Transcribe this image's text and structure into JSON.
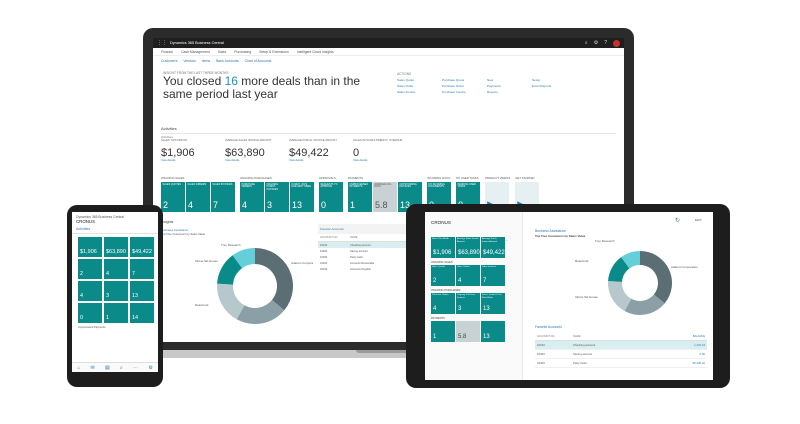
{
  "laptop": {
    "app_title": "Dynamics 365 Business Central",
    "menu": [
      "Finance",
      "Cash Management",
      "Sales",
      "Purchasing",
      "Setup & Extensions",
      "Intelligent Cloud Insights"
    ],
    "sub_menu": [
      "Customers",
      "Vendors",
      "Items",
      "Bank Accounts",
      "Chart of Accounts"
    ],
    "headline_label": "INSIGHT FROM THE LAST THREE MONTHS",
    "headline_pre": "You closed ",
    "headline_num": "16",
    "headline_post": " more deals than in the same period last year",
    "actions_title": "ACTIONS",
    "actions": [
      "Sales Quote",
      "Purchase Quote",
      "New",
      "Setup",
      "Sales Order",
      "Purchase Order",
      "Payments",
      "Excel Reports",
      "Sales Invoice",
      "Purchase Invoice",
      "Reports",
      ""
    ],
    "activities_title": "Activities",
    "activities_sub": "Activities",
    "kpis": [
      {
        "label": "SALES THIS MONTH",
        "value": "$1,906",
        "link": "View details"
      },
      {
        "label": "AVERAGE SALES INVOICE AMOUNT",
        "value": "$63,890",
        "link": "View details"
      },
      {
        "label": "AVERAGE PURCH. INVOICE AMOUNT",
        "value": "$49,422",
        "link": "View details"
      },
      {
        "label": "SALES INVOICES PREDICT. OVERDUE",
        "value": "0",
        "link": "View details"
      }
    ],
    "tile_groups": [
      {
        "label": "ONGOING SALES",
        "tiles": [
          {
            "label": "SALES QUOTES",
            "value": "2"
          },
          {
            "label": "SALES ORDERS",
            "value": "4"
          },
          {
            "label": "SALES INVOICES",
            "value": "7"
          }
        ]
      },
      {
        "label": "ONGOING PURCHASES",
        "tiles": [
          {
            "label": "PURCHASE ORDERS",
            "value": "4"
          },
          {
            "label": "ONGOING PURCH. INVOICES",
            "value": "3"
          },
          {
            "label": "PURCH. INVS. DUE NEXT WEEK",
            "value": "13"
          }
        ]
      },
      {
        "label": "APPROVALS",
        "tiles": [
          {
            "label": "REQUESTS TO APPROVE",
            "value": "0"
          }
        ]
      },
      {
        "label": "PAYMENTS",
        "tiles": [
          {
            "label": "UNPROCESSED PAYMENTS",
            "value": "1"
          },
          {
            "label": "AVERAGE COL. DAYS",
            "value": "5.8"
          },
          {
            "label": "OUTSTANDING INVOICES",
            "value": "13"
          }
        ]
      },
      {
        "label": "INCOMING DOCU.",
        "tiles": [
          {
            "label": "MY INCOMING DOCUMENTS",
            "value": "0"
          }
        ]
      },
      {
        "label": "MY USER TASKS",
        "tiles": [
          {
            "label": "PENDING USER TASKS",
            "value": "0"
          }
        ]
      },
      {
        "label": "PRODUCT VIDEOS",
        "tiles": [
          {
            "label": "",
            "value": "▶"
          }
        ]
      },
      {
        "label": "GET STARTED",
        "tiles": [
          {
            "label": "",
            "value": "▶"
          }
        ]
      }
    ],
    "insights_label": "Insights",
    "biz_title": "Business Assistance",
    "biz_sub": "Top Five Customers by Sales Value",
    "donut_labels": [
      "Trey Research",
      "Alpine Ski House",
      "Relecloud",
      "Adatum Corporation"
    ],
    "fav_title": "Favorite Accounts",
    "fav_header": [
      "ACCOUNT NO.",
      "NAME"
    ],
    "fav_rows": [
      {
        "no": "10100",
        "name": "Checking account"
      },
      {
        "no": "10200",
        "name": "Saving account"
      },
      {
        "no": "10300",
        "name": "Petty Cash"
      },
      {
        "no": "10400",
        "name": "Accounts Receivable"
      },
      {
        "no": "20100",
        "name": "Accounts Payable"
      }
    ]
  },
  "phone": {
    "title": "Dynamics 365 Business Central",
    "company": "CRONUS",
    "activities": "Activities",
    "tiles": [
      "$1,906",
      "$63,890",
      "$49,422",
      "2",
      "4",
      "7",
      "4",
      "3",
      "13",
      "0",
      "1",
      "14"
    ],
    "section": "Unprocessed Payments",
    "nav_icons": [
      "home-icon",
      "inbox-icon",
      "reports-icon",
      "search-icon",
      "more-icon",
      "gear-icon"
    ]
  },
  "tablet": {
    "company": "CRONUS",
    "kpi_tiles": [
      {
        "label": "Sales This Month",
        "value": "$1,906"
      },
      {
        "label": "Average Sales Invoice Amount",
        "value": "$63,890"
      },
      {
        "label": "Average Purch. Invoice Amount",
        "value": "$49,422"
      }
    ],
    "sections": [
      {
        "label": "ONGOING SALES",
        "tiles": [
          {
            "label": "Sales Quotes",
            "value": "2"
          },
          {
            "label": "Sales Orders",
            "value": "4"
          },
          {
            "label": "Sales Invoices",
            "value": "7"
          }
        ]
      },
      {
        "label": "ONGOING PURCHASES",
        "tiles": [
          {
            "label": "Purchase Orders",
            "value": "4"
          },
          {
            "label": "Ongoing Purchase Invoices",
            "value": "3"
          },
          {
            "label": "Purch. Invoices Due Next Week",
            "value": "13"
          }
        ]
      },
      {
        "label": "PAYMENTS",
        "tiles": [
          {
            "label": "",
            "value": "1"
          },
          {
            "label": "",
            "value": "5.8"
          },
          {
            "label": "",
            "value": "13"
          }
        ]
      }
    ],
    "right_title": "Business Assistance",
    "right_sub": "Top Five Customers by Sales Value",
    "donut_labels": [
      "Trey Research",
      "Relecloud",
      "Adatum Corporation",
      "Alpine Ski House"
    ],
    "edit_label": "EDIT",
    "fav_title": "Favorite Accounts",
    "fav_header": [
      "ACCOUNT NO.",
      "NAME",
      "BALANCE"
    ],
    "fav_rows": [
      {
        "no": "10100",
        "name": "Checking account",
        "bal": "1,434.44"
      },
      {
        "no": "10200",
        "name": "Saving account",
        "bal": "0.00"
      },
      {
        "no": "10300",
        "name": "Petty Cash",
        "bal": "96,335.22"
      }
    ]
  },
  "donut": {
    "segments": [
      0.36,
      0.22,
      0.18,
      0.14,
      0.1
    ],
    "colors": [
      "#5a6e73",
      "#8aa0a6",
      "#b6c8cc",
      "#0b8a8a",
      "#64cfd8"
    ]
  }
}
